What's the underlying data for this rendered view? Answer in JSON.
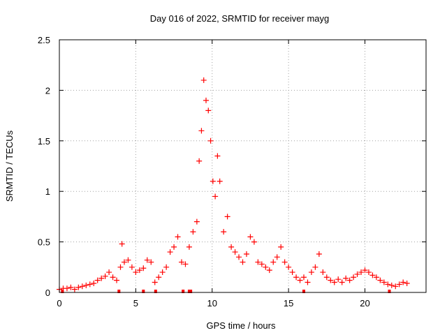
{
  "chart_data": {
    "type": "scatter",
    "title": "Day 016 of 2022, SRMTID for receiver mayg",
    "xlabel": "GPS time / hours",
    "ylabel": "SRMTID / TECUs",
    "xlim": [
      0,
      24
    ],
    "ylim": [
      0,
      2.5
    ],
    "xticks": [
      0,
      5,
      10,
      15,
      20
    ],
    "yticks": [
      0,
      0.5,
      1,
      1.5,
      2,
      2.5
    ],
    "xtick_labels": [
      "0",
      "5",
      "10",
      "15",
      "20"
    ],
    "ytick_labels": [
      "0",
      "0.5",
      "1",
      "1.5",
      "2",
      "2.5"
    ],
    "grid": true,
    "marker": "+",
    "marker_color": "#ff0000",
    "series": [
      {
        "name": "SRMTID",
        "x": [
          0.0,
          0.25,
          0.5,
          0.75,
          1.0,
          1.25,
          1.5,
          1.75,
          2.0,
          2.25,
          2.5,
          2.75,
          3.0,
          3.25,
          3.5,
          3.75,
          4.0,
          4.1,
          4.25,
          4.5,
          4.75,
          5.0,
          5.25,
          5.5,
          5.75,
          6.0,
          6.25,
          6.5,
          6.75,
          7.0,
          7.25,
          7.5,
          7.75,
          8.0,
          8.25,
          8.5,
          8.75,
          9.0,
          9.15,
          9.3,
          9.45,
          9.6,
          9.75,
          9.9,
          10.05,
          10.2,
          10.35,
          10.5,
          10.75,
          11.0,
          11.25,
          11.5,
          11.75,
          12.0,
          12.25,
          12.5,
          12.75,
          13.0,
          13.25,
          13.5,
          13.75,
          14.0,
          14.25,
          14.5,
          14.75,
          15.0,
          15.25,
          15.5,
          15.75,
          16.0,
          16.25,
          16.5,
          16.75,
          17.0,
          17.25,
          17.5,
          17.75,
          18.0,
          18.25,
          18.5,
          18.75,
          19.0,
          19.25,
          19.5,
          19.75,
          20.0,
          20.25,
          20.5,
          20.75,
          21.0,
          21.25,
          21.5,
          21.75,
          22.0,
          22.25,
          22.5,
          22.75
        ],
        "y": [
          0.03,
          0.04,
          0.04,
          0.05,
          0.03,
          0.05,
          0.06,
          0.07,
          0.08,
          0.09,
          0.12,
          0.14,
          0.16,
          0.2,
          0.15,
          0.12,
          0.25,
          0.48,
          0.3,
          0.32,
          0.25,
          0.2,
          0.22,
          0.24,
          0.32,
          0.3,
          0.1,
          0.15,
          0.2,
          0.25,
          0.4,
          0.45,
          0.55,
          0.3,
          0.28,
          0.45,
          0.6,
          0.7,
          1.3,
          1.6,
          2.1,
          1.9,
          1.8,
          1.5,
          1.1,
          0.95,
          1.35,
          1.1,
          0.6,
          0.75,
          0.45,
          0.4,
          0.35,
          0.3,
          0.38,
          0.55,
          0.5,
          0.3,
          0.28,
          0.25,
          0.22,
          0.3,
          0.35,
          0.45,
          0.3,
          0.25,
          0.2,
          0.15,
          0.12,
          0.15,
          0.1,
          0.2,
          0.25,
          0.38,
          0.2,
          0.15,
          0.12,
          0.1,
          0.13,
          0.1,
          0.14,
          0.12,
          0.15,
          0.18,
          0.2,
          0.22,
          0.2,
          0.17,
          0.15,
          0.12,
          0.1,
          0.08,
          0.07,
          0.06,
          0.08,
          0.1,
          0.09
        ]
      }
    ],
    "rug_marks_x": [
      0.2,
      3.9,
      5.5,
      6.3,
      8.1,
      8.5,
      8.6,
      16.0,
      21.6
    ]
  }
}
